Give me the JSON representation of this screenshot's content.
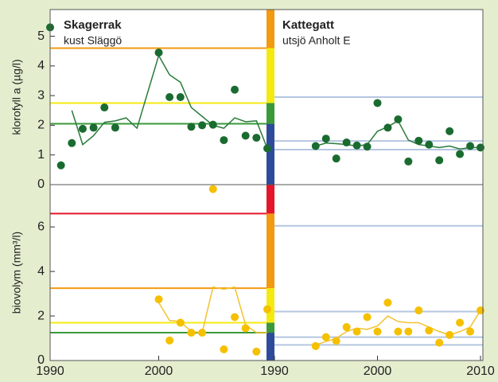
{
  "chart_data": [
    {
      "type": "line",
      "title": "Skagerrak",
      "subtitle": "kust Släggö",
      "ylabel": "klorofyll a (µg/l)",
      "xlim": [
        1990,
        2010
      ],
      "ylim": [
        0,
        5.9
      ],
      "yticks": [
        0,
        1,
        2,
        3,
        4,
        5
      ],
      "base_color": "#2e4b9b",
      "reference_lines": [
        {
          "value": 2.05,
          "color": "#3a9a3a"
        },
        {
          "value": 2.75,
          "color": "#f5ea10"
        },
        {
          "value": 4.6,
          "color": "#f29a10"
        }
      ],
      "points": {
        "color": "#1a6b30",
        "x": [
          1990,
          1991,
          1992,
          1993,
          1994,
          1995,
          1996,
          2000,
          2001,
          2002,
          2003,
          2004,
          2005,
          2006,
          2007,
          2008,
          2009,
          2010
        ],
        "values": [
          5.3,
          0.65,
          1.4,
          1.88,
          1.92,
          2.6,
          1.92,
          4.45,
          2.95,
          2.95,
          1.95,
          2.0,
          2.02,
          1.5,
          3.2,
          1.65,
          1.58,
          1.22
        ]
      },
      "line": {
        "color": "#2a7a3a",
        "x": [
          1992,
          1993,
          1994,
          1995,
          1996,
          1997,
          1998,
          2000,
          2001,
          2002,
          2003,
          2004,
          2005,
          2006,
          2007,
          2008,
          2009,
          2010
        ],
        "values": [
          2.5,
          1.35,
          1.65,
          2.1,
          2.15,
          2.25,
          1.9,
          4.35,
          3.7,
          3.45,
          2.6,
          2.3,
          2.0,
          1.9,
          2.25,
          2.12,
          2.15,
          1.22
        ]
      }
    },
    {
      "type": "line",
      "title": "Kattegatt",
      "subtitle": "utsjö Anholt E",
      "xlim": [
        1990,
        2010
      ],
      "ylim": [
        0,
        5.9
      ],
      "reference_lines": [
        {
          "value": 1.18,
          "color": "#b4c6e0"
        },
        {
          "value": 1.47,
          "color": "#b4c6e0"
        },
        {
          "value": 2.95,
          "color": "#b4c6e0"
        }
      ],
      "points": {
        "color": "#1a6b30",
        "x": [
          1994,
          1995,
          1996,
          1997,
          1998,
          1999,
          2000,
          2001,
          2002,
          2003,
          2004,
          2005,
          2006,
          2007,
          2008,
          2009,
          2010
        ],
        "values": [
          1.3,
          1.55,
          0.88,
          1.42,
          1.32,
          1.28,
          2.75,
          1.92,
          2.2,
          0.78,
          1.48,
          1.35,
          0.82,
          1.8,
          1.03,
          1.3,
          1.25
        ]
      },
      "line": {
        "color": "#2a7a3a",
        "x": [
          1994,
          1995,
          1996,
          1997,
          1998,
          1999,
          2000,
          2001,
          2002,
          2003,
          2004,
          2005,
          2006,
          2007,
          2008,
          2009,
          2010
        ],
        "values": [
          1.3,
          1.4,
          1.38,
          1.35,
          1.3,
          1.35,
          1.8,
          1.95,
          2.15,
          1.5,
          1.35,
          1.3,
          1.25,
          1.3,
          1.2,
          1.25,
          1.25
        ]
      }
    },
    {
      "type": "line",
      "ylabel": "biovolym (mm³/l)",
      "xlim": [
        1990,
        2010
      ],
      "ylim": [
        0,
        7.9
      ],
      "yticks": [
        0,
        2,
        4,
        6
      ],
      "xticks": [
        1990,
        2000
      ],
      "base_color": "#2e4b9b",
      "reference_lines": [
        {
          "value": 1.25,
          "color": "#3a9a3a"
        },
        {
          "value": 1.7,
          "color": "#f5ea10"
        },
        {
          "value": 3.25,
          "color": "#f29a10"
        },
        {
          "value": 6.6,
          "color": "#e5152a"
        }
      ],
      "points": {
        "color": "#f5c000",
        "x": [
          2000,
          2001,
          2002,
          2003,
          2004,
          2005,
          2006,
          2007,
          2008,
          2009,
          2010
        ],
        "values": [
          2.75,
          0.9,
          1.7,
          1.25,
          1.25,
          7.7,
          0.5,
          1.95,
          1.45,
          0.4,
          2.3
        ]
      },
      "line": {
        "color": "#f2c230",
        "x": [
          2000,
          2001,
          2002,
          2003,
          2004,
          2005,
          2006,
          2007,
          2008,
          2009,
          2010
        ],
        "values": [
          2.6,
          1.8,
          1.75,
          1.3,
          1.25,
          3.3,
          3.2,
          3.3,
          1.6,
          1.25,
          1.25
        ]
      }
    },
    {
      "type": "line",
      "xlim": [
        1990,
        2010
      ],
      "ylim": [
        0,
        7.9
      ],
      "xticks": [
        1990,
        2000,
        2010
      ],
      "reference_lines": [
        {
          "value": 0.7,
          "color": "#b4c6e0"
        },
        {
          "value": 1.05,
          "color": "#b4c6e0"
        },
        {
          "value": 2.2,
          "color": "#b4c6e0"
        },
        {
          "value": 6.05,
          "color": "#b4c6e0"
        }
      ],
      "points": {
        "color": "#f5c000",
        "x": [
          1994,
          1995,
          1996,
          1997,
          1998,
          1999,
          2000,
          2001,
          2002,
          2003,
          2004,
          2005,
          2006,
          2007,
          2008,
          2009,
          2010
        ],
        "values": [
          0.65,
          1.05,
          0.88,
          1.5,
          1.3,
          1.95,
          1.3,
          2.6,
          1.3,
          1.3,
          2.25,
          1.35,
          0.8,
          1.15,
          1.7,
          1.3,
          2.25
        ]
      },
      "line": {
        "color": "#f2c230",
        "x": [
          1994,
          1995,
          1996,
          1997,
          1998,
          1999,
          2000,
          2001,
          2002,
          2003,
          2004,
          2005,
          2006,
          2007,
          2008,
          2009,
          2010
        ],
        "values": [
          0.7,
          0.85,
          1.0,
          1.3,
          1.45,
          1.4,
          1.55,
          2.0,
          1.75,
          1.7,
          1.7,
          1.5,
          1.3,
          1.15,
          1.3,
          1.5,
          2.25
        ]
      }
    }
  ]
}
